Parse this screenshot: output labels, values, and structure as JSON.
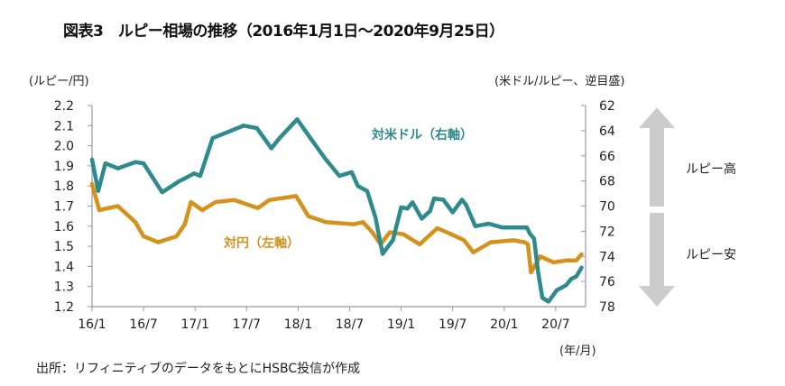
{
  "title": "図表3　ルピー相場の推移（2016年1月1日～2020年9月25日）",
  "source": "出所：リフィニティブのデータをもとにHSBC投信が作成",
  "colors": {
    "usd": "#2e8a8c",
    "jpy": "#d4921c",
    "axis": "#999999",
    "arrow": "#cccccc"
  },
  "chart_data": {
    "type": "line",
    "title": "ルピー相場の推移（2016年1月1日～2020年9月25日）",
    "xlabel": "(年/月)",
    "ylabel_left": "(ルピー/円)",
    "ylabel_right": "(米ドル/ルピー、逆目盛)",
    "x_ticks": [
      "16/1",
      "16/7",
      "17/1",
      "17/7",
      "18/1",
      "18/7",
      "19/1",
      "19/7",
      "20/1",
      "20/7"
    ],
    "x_range": [
      2016.0,
      2020.75
    ],
    "y_left_range": [
      1.2,
      2.2
    ],
    "y_left_ticks": [
      "2.2",
      "2.1",
      "2.0",
      "1.9",
      "1.8",
      "1.7",
      "1.6",
      "1.5",
      "1.4",
      "1.3",
      "1.2"
    ],
    "y_right_range": [
      62,
      78
    ],
    "y_right_inverted": true,
    "y_right_ticks": [
      "62",
      "64",
      "66",
      "68",
      "70",
      "72",
      "74",
      "76",
      "78"
    ],
    "grid": false,
    "series": [
      {
        "name": "対米ドル（右軸）",
        "axis": "right",
        "x": [
          2016.0,
          2016.06,
          2016.13,
          2016.25,
          2016.42,
          2016.5,
          2016.68,
          2016.85,
          2016.9,
          2016.99,
          2017.05,
          2017.17,
          2017.29,
          2017.47,
          2017.6,
          2017.74,
          2017.82,
          2017.99,
          2018.12,
          2018.26,
          2018.4,
          2018.52,
          2018.58,
          2018.67,
          2018.75,
          2018.82,
          2018.92,
          2019.0,
          2019.06,
          2019.11,
          2019.2,
          2019.28,
          2019.32,
          2019.41,
          2019.5,
          2019.59,
          2019.63,
          2019.72,
          2019.85,
          2019.98,
          2020.11,
          2020.22,
          2020.25,
          2020.29,
          2020.33,
          2020.37,
          2020.43,
          2020.51,
          2020.6,
          2020.65,
          2020.7,
          2020.75
        ],
        "values": [
          66.3,
          68.8,
          66.6,
          67.0,
          66.5,
          66.6,
          68.9,
          68.0,
          67.8,
          67.4,
          67.6,
          64.6,
          64.2,
          63.6,
          63.8,
          65.4,
          64.6,
          63.1,
          64.6,
          66.2,
          67.6,
          67.3,
          68.4,
          68.8,
          70.9,
          73.8,
          72.7,
          70.1,
          70.2,
          69.7,
          71.0,
          70.4,
          69.4,
          69.5,
          70.5,
          69.5,
          69.9,
          71.6,
          71.4,
          71.7,
          71.7,
          71.7,
          72.2,
          72.6,
          75.3,
          77.3,
          77.6,
          76.7,
          76.3,
          75.8,
          75.6,
          74.9
        ]
      },
      {
        "name": "対円（左軸）",
        "axis": "left",
        "x": [
          2016.0,
          2016.07,
          2016.25,
          2016.42,
          2016.5,
          2016.64,
          2016.82,
          2016.9,
          2016.96,
          2017.07,
          2017.2,
          2017.38,
          2017.61,
          2017.72,
          2017.98,
          2018.1,
          2018.27,
          2018.54,
          2018.63,
          2018.72,
          2018.8,
          2018.89,
          2019.02,
          2019.18,
          2019.35,
          2019.53,
          2019.61,
          2019.7,
          2019.87,
          2020.09,
          2020.2,
          2020.23,
          2020.26,
          2020.35,
          2020.48,
          2020.61,
          2020.7,
          2020.75
        ],
        "values": [
          1.81,
          1.68,
          1.7,
          1.62,
          1.55,
          1.52,
          1.55,
          1.61,
          1.72,
          1.68,
          1.72,
          1.73,
          1.69,
          1.73,
          1.75,
          1.65,
          1.62,
          1.61,
          1.62,
          1.57,
          1.51,
          1.57,
          1.56,
          1.51,
          1.59,
          1.55,
          1.53,
          1.47,
          1.52,
          1.53,
          1.52,
          1.51,
          1.37,
          1.45,
          1.42,
          1.43,
          1.43,
          1.46
        ]
      }
    ],
    "annotations": [
      {
        "text": "対米ドル（右軸）",
        "series": "usd"
      },
      {
        "text": "対円（左軸）",
        "series": "jpy"
      },
      {
        "text": "ルピー高",
        "arrow": "up"
      },
      {
        "text": "ルピー安",
        "arrow": "down"
      }
    ]
  }
}
